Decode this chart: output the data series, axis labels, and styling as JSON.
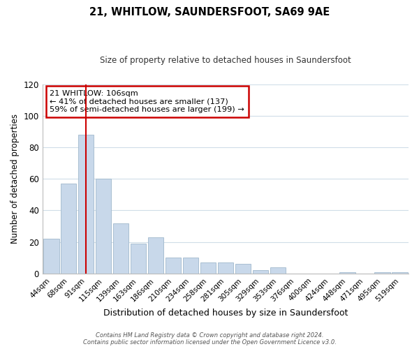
{
  "title": "21, WHITLOW, SAUNDERSFOOT, SA69 9AE",
  "subtitle": "Size of property relative to detached houses in Saundersfoot",
  "xlabel": "Distribution of detached houses by size in Saundersfoot",
  "ylabel": "Number of detached properties",
  "categories": [
    "44sqm",
    "68sqm",
    "91sqm",
    "115sqm",
    "139sqm",
    "163sqm",
    "186sqm",
    "210sqm",
    "234sqm",
    "258sqm",
    "281sqm",
    "305sqm",
    "329sqm",
    "353sqm",
    "376sqm",
    "400sqm",
    "424sqm",
    "448sqm",
    "471sqm",
    "495sqm",
    "519sqm"
  ],
  "values": [
    22,
    57,
    88,
    60,
    32,
    19,
    23,
    10,
    10,
    7,
    7,
    6,
    2,
    4,
    0,
    0,
    0,
    1,
    0,
    1,
    1
  ],
  "bar_color": "#c8d8ea",
  "bar_edge_color": "#a0b8cc",
  "vline_color": "#cc0000",
  "vline_pos": 2.0,
  "annotation_title": "21 WHITLOW: 106sqm",
  "annotation_line1": "← 41% of detached houses are smaller (137)",
  "annotation_line2": "59% of semi-detached houses are larger (199) →",
  "annotation_box_color": "#ffffff",
  "annotation_box_edge": "#cc0000",
  "ylim": [
    0,
    120
  ],
  "yticks": [
    0,
    20,
    40,
    60,
    80,
    100,
    120
  ],
  "footer1": "Contains HM Land Registry data © Crown copyright and database right 2024.",
  "footer2": "Contains public sector information licensed under the Open Government Licence v3.0.",
  "background_color": "#ffffff",
  "grid_color": "#d0dde8"
}
